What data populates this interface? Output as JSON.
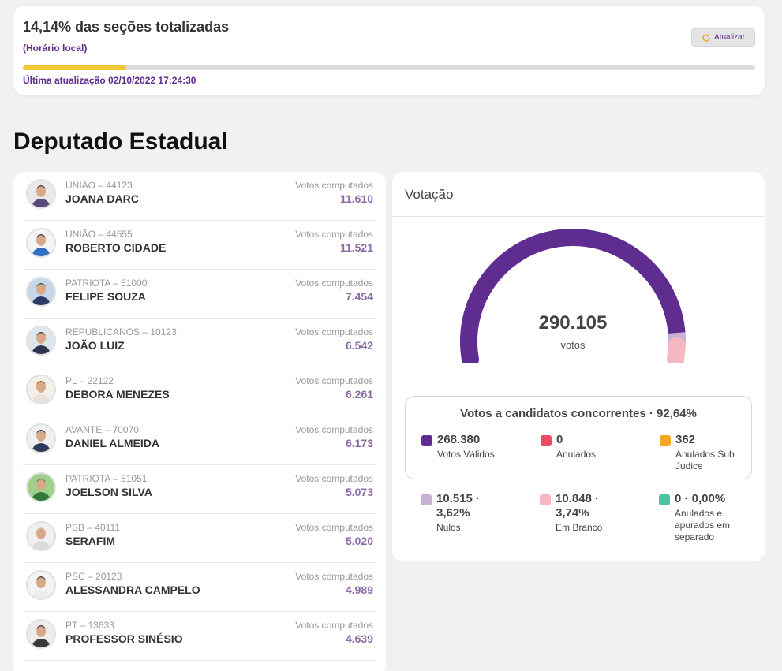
{
  "status": {
    "title": "14,14% das seções totalizadas",
    "subtitle": "(Horário local)",
    "refresh_label": "Atualizar",
    "progress_percent": 14.14,
    "last_update": "Última atualização 02/10/2022 17:24:30"
  },
  "section_title": "Deputado Estadual",
  "candidates": [
    {
      "party": "UNIÃO – 44123",
      "name": "JOANA DARC",
      "votes_label": "Votos computados",
      "votes": "11.610"
    },
    {
      "party": "UNIÃO – 44555",
      "name": "ROBERTO CIDADE",
      "votes_label": "Votos computados",
      "votes": "11.521"
    },
    {
      "party": "PATRIOTA – 51000",
      "name": "FELIPE SOUZA",
      "votes_label": "Votos computados",
      "votes": "7.454"
    },
    {
      "party": "REPUBLICANOS – 10123",
      "name": "JOÃO LUIZ",
      "votes_label": "Votos computados",
      "votes": "6.542"
    },
    {
      "party": "PL – 22122",
      "name": "DEBORA MENEZES",
      "votes_label": "Votos computados",
      "votes": "6.261"
    },
    {
      "party": "AVANTE – 70070",
      "name": "DANIEL ALMEIDA",
      "votes_label": "Votos computados",
      "votes": "6.173"
    },
    {
      "party": "PATRIOTA – 51051",
      "name": "JOELSON SILVA",
      "votes_label": "Votos computados",
      "votes": "5.073"
    },
    {
      "party": "PSB – 40111",
      "name": "SERAFIM",
      "votes_label": "Votos computados",
      "votes": "5.020"
    },
    {
      "party": "PSC – 20123",
      "name": "ALESSANDRA CAMPELO",
      "votes_label": "Votos computados",
      "votes": "4.989"
    },
    {
      "party": "PT – 13633",
      "name": "PROFESSOR SINÉSIO",
      "votes_label": "Votos computados",
      "votes": "4.639"
    }
  ],
  "voting": {
    "title": "Votação",
    "total": "290.105",
    "unit": "votos",
    "gauge_segments": [
      {
        "name": "valid",
        "value": 268380,
        "color": "#5f2c8f"
      },
      {
        "name": "null",
        "value": 10515,
        "color": "#c9b1d6"
      },
      {
        "name": "blank",
        "value": 10848,
        "color": "#f6b9c4"
      }
    ],
    "summary_title": "Votos a candidatos concorrentes · 92,64%",
    "summary_stats": [
      {
        "value": "268.380",
        "label": "Votos Válidos",
        "color": "#5f2c8f"
      },
      {
        "value": "0",
        "label": "Anulados",
        "color": "#ec4b63"
      },
      {
        "value": "362",
        "label": "Anulados Sub Judice",
        "color": "#f5a623"
      }
    ],
    "other_stats": [
      {
        "value": "10.515 · 3,62%",
        "label": "Nulos",
        "color": "#c9b1d6"
      },
      {
        "value": "10.848 · 3,74%",
        "label": "Em Branco",
        "color": "#f6b9c4"
      },
      {
        "value": "0 · 0,00%",
        "label": "Anulados e apurados em separado",
        "color": "#4cc3a0"
      }
    ]
  }
}
